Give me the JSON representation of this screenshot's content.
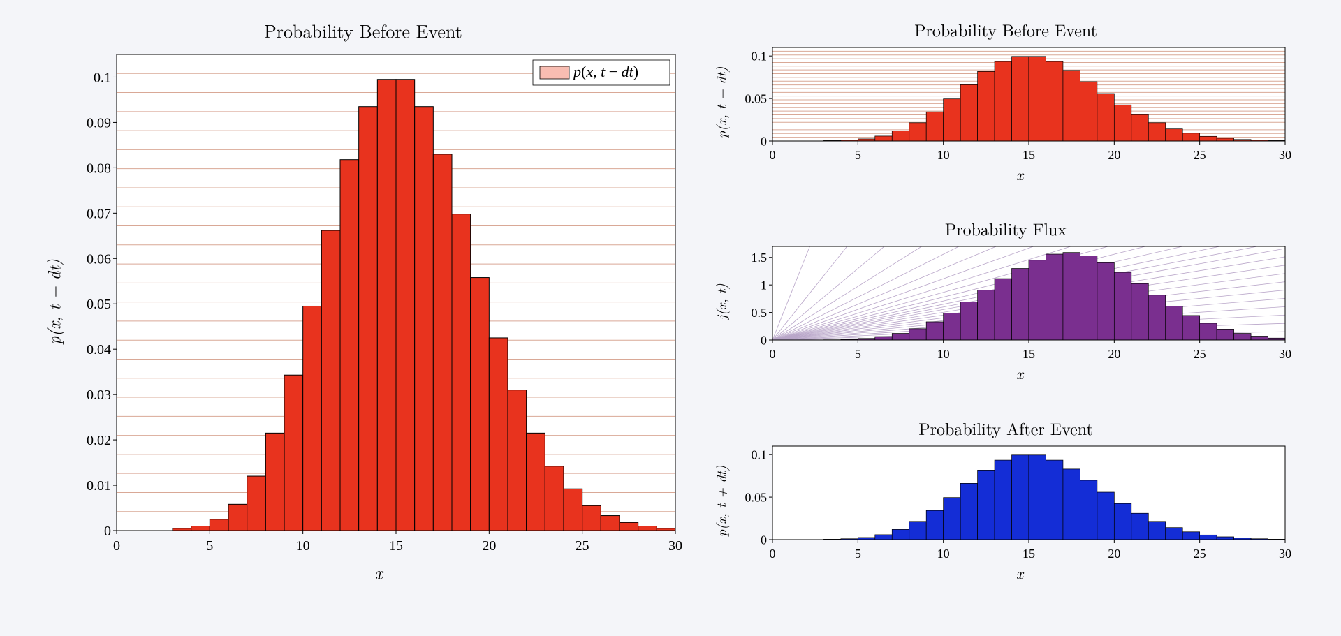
{
  "background_color": "#f4f5f9",
  "plot_bg": "#ffffff",
  "axis_color": "#000000",
  "grid_color": "#d9a896",
  "grid_color_flux": "#b9a6c9",
  "main": {
    "title": "Probability Before Event",
    "ylabel": "p(x, t − dt)",
    "xlabel": "x",
    "legend_label": "p(x, t − dt)",
    "legend_swatch_fill": "#f8bdb2",
    "legend_swatch_stroke": "#000000",
    "bar_fill": "#e8331e",
    "bar_stroke": "#000000",
    "xlim": [
      0,
      30
    ],
    "ylim": [
      0,
      0.105
    ],
    "xticks": [
      0,
      5,
      10,
      15,
      20,
      25,
      30
    ],
    "yticks": [
      0,
      0.01,
      0.02,
      0.03,
      0.04,
      0.05,
      0.06,
      0.07,
      0.08,
      0.09,
      0.1
    ],
    "ytick_labels": [
      "0",
      "0.01",
      "0.02",
      "0.03",
      "0.04",
      "0.05",
      "0.06",
      "0.07",
      "0.08",
      "0.09",
      "0.1"
    ],
    "n_hgrid": 25,
    "bars_x": [
      0,
      1,
      2,
      3,
      4,
      5,
      6,
      7,
      8,
      9,
      10,
      11,
      12,
      13,
      14,
      15,
      16,
      17,
      18,
      19,
      20,
      21,
      22,
      23,
      24,
      25,
      26,
      27,
      28,
      29
    ],
    "bars_y": [
      0,
      0,
      0,
      0.0005,
      0.001,
      0.0025,
      0.0058,
      0.012,
      0.0215,
      0.0343,
      0.0495,
      0.0662,
      0.0818,
      0.0935,
      0.0995,
      0.0995,
      0.0935,
      0.083,
      0.0698,
      0.0558,
      0.0425,
      0.031,
      0.0215,
      0.0142,
      0.0092,
      0.0055,
      0.0033,
      0.0018,
      0.001,
      0.0005
    ]
  },
  "mini1": {
    "title": "Probability Before Event",
    "ylabel": "p(x, t − dt)",
    "xlabel": "x",
    "bar_fill": "#e8331e",
    "bar_stroke": "#000000",
    "xlim": [
      0,
      30
    ],
    "ylim": [
      0,
      0.11
    ],
    "xticks": [
      0,
      5,
      10,
      15,
      20,
      25,
      30
    ],
    "yticks": [
      0,
      0.05,
      0.1
    ],
    "ytick_labels": [
      "0",
      "0.05",
      "0.1"
    ],
    "n_hgrid": 25,
    "grid_color": "#d9a896",
    "bars_x": [
      0,
      1,
      2,
      3,
      4,
      5,
      6,
      7,
      8,
      9,
      10,
      11,
      12,
      13,
      14,
      15,
      16,
      17,
      18,
      19,
      20,
      21,
      22,
      23,
      24,
      25,
      26,
      27,
      28,
      29
    ],
    "bars_y": [
      0,
      0,
      0,
      0.0005,
      0.001,
      0.0025,
      0.0058,
      0.012,
      0.0215,
      0.0343,
      0.0495,
      0.0662,
      0.0818,
      0.0935,
      0.0995,
      0.0995,
      0.0935,
      0.083,
      0.0698,
      0.0558,
      0.0425,
      0.031,
      0.0215,
      0.0142,
      0.0092,
      0.0055,
      0.0033,
      0.0018,
      0.001,
      0.0005
    ]
  },
  "mini2": {
    "title": "Probability Flux",
    "ylabel": "j(x, t)",
    "xlabel": "x",
    "bar_fill": "#7a2f8f",
    "bar_stroke": "#000000",
    "xlim": [
      0,
      30
    ],
    "ylim": [
      0,
      1.7
    ],
    "xticks": [
      0,
      5,
      10,
      15,
      20,
      25,
      30
    ],
    "yticks": [
      0,
      0.5,
      1,
      1.5
    ],
    "ytick_labels": [
      "0",
      "0.5",
      "1",
      "1.5"
    ],
    "grid_color": "#b9a6c9",
    "n_rays": 25,
    "bars_x": [
      0,
      1,
      2,
      3,
      4,
      5,
      6,
      7,
      8,
      9,
      10,
      11,
      12,
      13,
      14,
      15,
      16,
      17,
      18,
      19,
      20,
      21,
      22,
      23,
      24,
      25,
      26,
      27,
      28,
      29
    ],
    "bars_y": [
      0,
      0,
      0,
      0.004,
      0.012,
      0.028,
      0.062,
      0.12,
      0.205,
      0.33,
      0.49,
      0.69,
      0.905,
      1.115,
      1.3,
      1.45,
      1.56,
      1.59,
      1.53,
      1.405,
      1.23,
      1.025,
      0.815,
      0.615,
      0.445,
      0.305,
      0.198,
      0.12,
      0.07,
      0.035
    ]
  },
  "mini3": {
    "title": "Probability After Event",
    "ylabel": "p(x, t + dt)",
    "xlabel": "x",
    "bar_fill": "#142dd6",
    "bar_stroke": "#000000",
    "xlim": [
      0,
      30
    ],
    "ylim": [
      0,
      0.11
    ],
    "xticks": [
      0,
      5,
      10,
      15,
      20,
      25,
      30
    ],
    "yticks": [
      0,
      0.05,
      0.1
    ],
    "ytick_labels": [
      "0",
      "0.05",
      "0.1"
    ],
    "bars_x": [
      0,
      1,
      2,
      3,
      4,
      5,
      6,
      7,
      8,
      9,
      10,
      11,
      12,
      13,
      14,
      15,
      16,
      17,
      18,
      19,
      20,
      21,
      22,
      23,
      24,
      25,
      26,
      27,
      28,
      29
    ],
    "bars_y": [
      0,
      0,
      0,
      0.0005,
      0.001,
      0.0025,
      0.0058,
      0.012,
      0.0215,
      0.0343,
      0.0495,
      0.0662,
      0.0818,
      0.0935,
      0.0995,
      0.0995,
      0.0935,
      0.083,
      0.0698,
      0.0558,
      0.0425,
      0.031,
      0.0215,
      0.0142,
      0.0092,
      0.0055,
      0.0033,
      0.0018,
      0.001,
      0.0005
    ]
  }
}
